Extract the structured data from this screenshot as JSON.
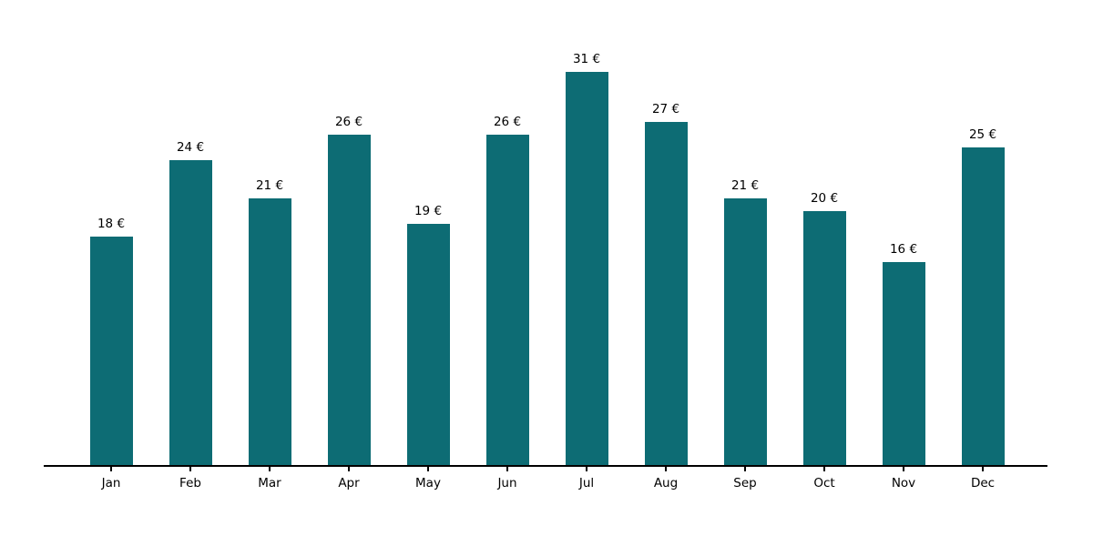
{
  "chart_data": {
    "type": "bar",
    "title": "",
    "xlabel": "",
    "ylabel": "",
    "categories": [
      "Jan",
      "Feb",
      "Mar",
      "Apr",
      "May",
      "Jun",
      "Jul",
      "Aug",
      "Sep",
      "Oct",
      "Nov",
      "Dec"
    ],
    "values": [
      18,
      24,
      21,
      26,
      19,
      26,
      31,
      27,
      21,
      20,
      16,
      25
    ],
    "value_labels": [
      "18 €",
      "24 €",
      "21 €",
      "26 €",
      "19 €",
      "26 €",
      "31 €",
      "27 €",
      "21 €",
      "20 €",
      "16 €",
      "25 €"
    ],
    "unit_suffix": " €",
    "ylim": [
      0,
      36
    ],
    "grid": false,
    "legend_position": "none",
    "colors": {
      "bar": "#0d6c74",
      "axis": "#000000",
      "text": "#000000",
      "background": "#ffffff"
    }
  }
}
